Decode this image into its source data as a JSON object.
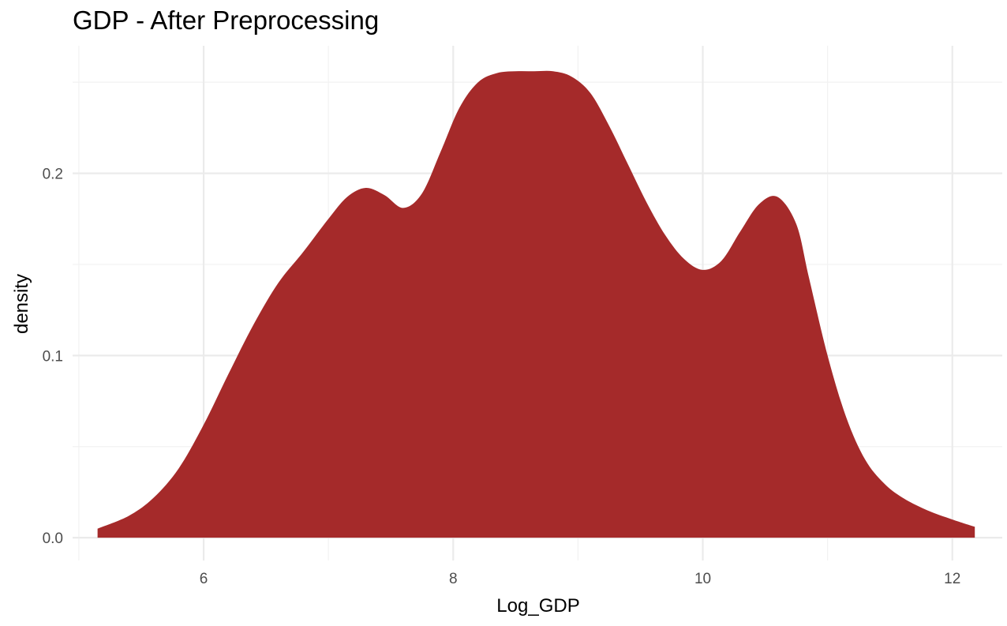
{
  "chart_data": {
    "type": "area",
    "title": "GDP - After Preprocessing",
    "xlabel": "Log_GDP",
    "ylabel": "density",
    "xlim": [
      4.95,
      12.4
    ],
    "ylim": [
      -0.0125,
      0.27
    ],
    "x_ticks": [
      6,
      8,
      10,
      12
    ],
    "x_tick_labels": [
      "6",
      "8",
      "10",
      "12"
    ],
    "y_ticks": [
      0.0,
      0.1,
      0.2
    ],
    "y_tick_labels": [
      "0.0",
      "0.1",
      "0.2"
    ],
    "grid": true,
    "legend": "none",
    "fill_color": "#A52A2A",
    "series": [
      {
        "x": [
          5.15,
          5.4,
          5.6,
          5.8,
          6.0,
          6.2,
          6.4,
          6.6,
          6.8,
          7.0,
          7.15,
          7.3,
          7.45,
          7.6,
          7.75,
          7.9,
          8.05,
          8.2,
          8.35,
          8.5,
          8.65,
          8.8,
          8.95,
          9.1,
          9.25,
          9.4,
          9.55,
          9.7,
          9.85,
          10.0,
          10.15,
          10.3,
          10.45,
          10.6,
          10.75,
          10.85,
          11.0,
          11.15,
          11.3,
          11.45,
          11.6,
          11.8,
          12.0,
          12.18
        ],
        "y": [
          0.005,
          0.012,
          0.022,
          0.038,
          0.062,
          0.09,
          0.117,
          0.14,
          0.157,
          0.175,
          0.187,
          0.192,
          0.188,
          0.181,
          0.189,
          0.212,
          0.236,
          0.25,
          0.255,
          0.256,
          0.256,
          0.256,
          0.253,
          0.244,
          0.226,
          0.205,
          0.184,
          0.166,
          0.153,
          0.147,
          0.152,
          0.168,
          0.183,
          0.187,
          0.172,
          0.143,
          0.1,
          0.066,
          0.043,
          0.03,
          0.022,
          0.015,
          0.01,
          0.006
        ]
      }
    ]
  }
}
